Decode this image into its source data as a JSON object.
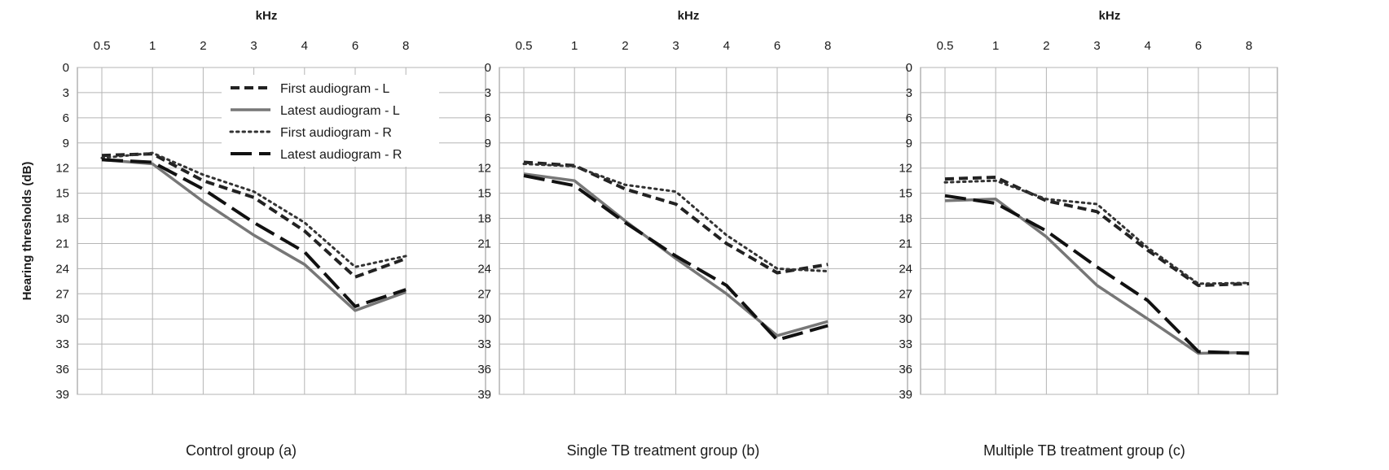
{
  "chart_data": [
    {
      "type": "line",
      "title": "Control group (a)",
      "xlabel": "kHz",
      "ylabel": "Hearing thresholds (dB)",
      "x": [
        "0.5",
        "1",
        "2",
        "3",
        "4",
        "6",
        "8"
      ],
      "yticks": [
        0,
        3,
        6,
        9,
        12,
        15,
        18,
        21,
        24,
        27,
        30,
        33,
        36,
        39
      ],
      "ylim": [
        0,
        39
      ],
      "y_inverted": true,
      "grid": true,
      "legend": "top-right",
      "series": [
        {
          "name": "First audiogram - L",
          "style": "dashed",
          "color": "#222222",
          "values": [
            10.5,
            10.3,
            13.5,
            15.5,
            19.5,
            25,
            22.8
          ]
        },
        {
          "name": "Latest audiogram - L",
          "style": "solid",
          "color": "#777777",
          "values": [
            11,
            11.5,
            16,
            20,
            23.5,
            29,
            26.8
          ]
        },
        {
          "name": "First audiogram - R",
          "style": "dotted",
          "color": "#333333",
          "values": [
            10.8,
            10.2,
            12.8,
            14.8,
            18.5,
            23.8,
            22.5
          ]
        },
        {
          "name": "Latest audiogram - R",
          "style": "longdash",
          "color": "#111111",
          "values": [
            11,
            11.3,
            14.5,
            18.5,
            22,
            28.5,
            26.5
          ]
        }
      ]
    },
    {
      "type": "line",
      "title": "Single TB treatment group (b)",
      "xlabel": "kHz",
      "ylabel": "",
      "x": [
        "0.5",
        "1",
        "2",
        "3",
        "4",
        "6",
        "8"
      ],
      "yticks": [
        0,
        3,
        6,
        9,
        12,
        15,
        18,
        21,
        24,
        27,
        30,
        33,
        36,
        39
      ],
      "ylim": [
        0,
        39
      ],
      "y_inverted": true,
      "grid": true,
      "series": [
        {
          "name": "First audiogram - L",
          "style": "dashed",
          "color": "#222222",
          "values": [
            11.3,
            11.7,
            14.5,
            16.3,
            21,
            24.5,
            23.5
          ]
        },
        {
          "name": "Latest audiogram - L",
          "style": "solid",
          "color": "#777777",
          "values": [
            12.7,
            13.5,
            18.3,
            22.8,
            27,
            32,
            30.3
          ]
        },
        {
          "name": "First audiogram - R",
          "style": "dotted",
          "color": "#333333",
          "values": [
            11.5,
            11.8,
            14,
            14.8,
            20,
            24,
            24.3
          ]
        },
        {
          "name": "Latest audiogram - R",
          "style": "longdash",
          "color": "#111111",
          "values": [
            12.9,
            14.1,
            18.5,
            22.5,
            26,
            32.5,
            30.8
          ]
        }
      ]
    },
    {
      "type": "line",
      "title": "Multiple TB treatment group (c)",
      "xlabel": "kHz",
      "ylabel": "",
      "x": [
        "0.5",
        "1",
        "2",
        "3",
        "4",
        "6",
        "8"
      ],
      "yticks": [
        "0",
        "3",
        "6",
        "9",
        "12",
        "15",
        "18",
        "21",
        "24",
        "27",
        "30",
        "33",
        "36",
        "39"
      ],
      "ylim": [
        0,
        39
      ],
      "y_inverted": true,
      "grid": true,
      "series": [
        {
          "name": "First audiogram - L",
          "style": "dashed",
          "color": "#222222",
          "values": [
            13.3,
            13.1,
            15.9,
            17.2,
            21.8,
            26,
            25.8
          ]
        },
        {
          "name": "Latest audiogram - L",
          "style": "solid",
          "color": "#777777",
          "values": [
            15.9,
            15.7,
            20.2,
            26,
            30,
            34.1,
            34
          ]
        },
        {
          "name": "First audiogram - R",
          "style": "dotted",
          "color": "#333333",
          "values": [
            13.7,
            13.5,
            15.7,
            16.3,
            21.5,
            25.8,
            25.7
          ]
        },
        {
          "name": "Latest audiogram - R",
          "style": "longdash",
          "color": "#111111",
          "values": [
            15.3,
            16.2,
            19.5,
            23.8,
            27.8,
            33.9,
            34.1
          ]
        }
      ]
    }
  ]
}
